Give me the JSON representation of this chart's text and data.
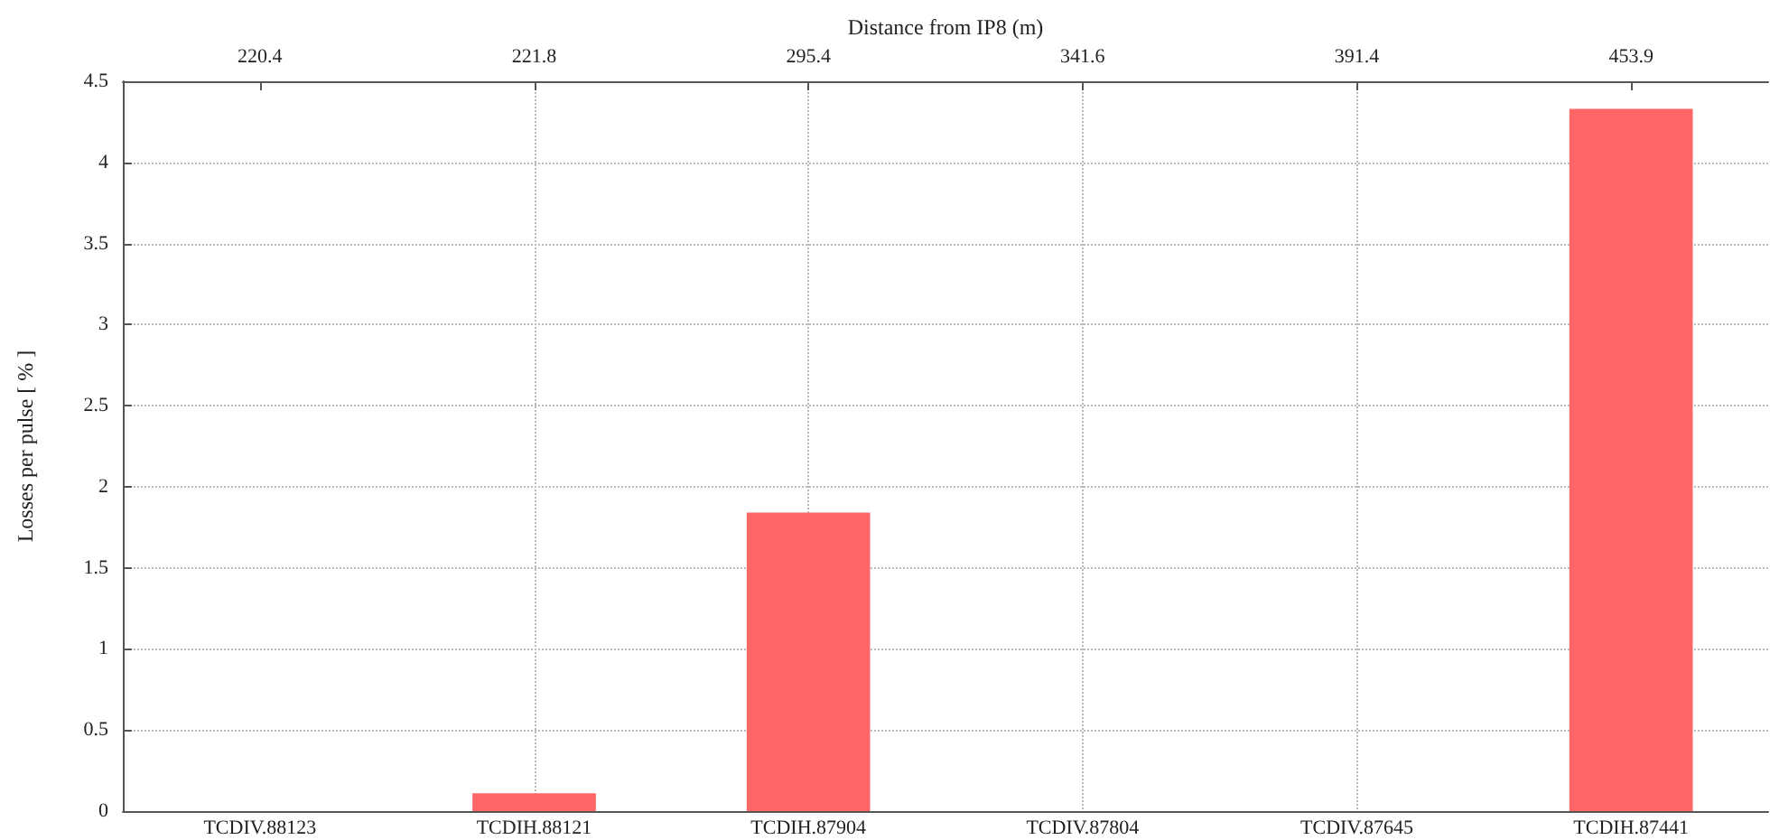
{
  "chart_data": {
    "type": "bar",
    "categories": [
      "TCDIV.88123",
      "TCDIH.88121",
      "TCDIH.87904",
      "TCDIV.87804",
      "TCDIV.87645",
      "TCDIH.87441"
    ],
    "values": [
      0,
      0.11,
      1.84,
      0,
      0,
      4.33
    ],
    "color": "#ff6666",
    "ylabel": "Losses per pulse [ % ]",
    "ylim": [
      0,
      4.5
    ],
    "yticks": [
      0,
      0.5,
      1,
      1.5,
      2,
      2.5,
      3,
      3.5,
      4,
      4.5
    ],
    "x2label": "Distance from IP8 (m)",
    "annotations": [
      {
        "text": "220.4",
        "x": "TCDIV.88123"
      },
      {
        "text": "221.8",
        "x": "TCDIH.88121"
      },
      {
        "text": "295.4",
        "x": "TCDIH.87904"
      },
      {
        "text": "341.6",
        "x": "TCDIV.87804"
      },
      {
        "text": "391.4",
        "x": "TCDIV.87645"
      },
      {
        "text": "453.9",
        "x": "TCDIH.87441"
      }
    ],
    "grid": true
  }
}
